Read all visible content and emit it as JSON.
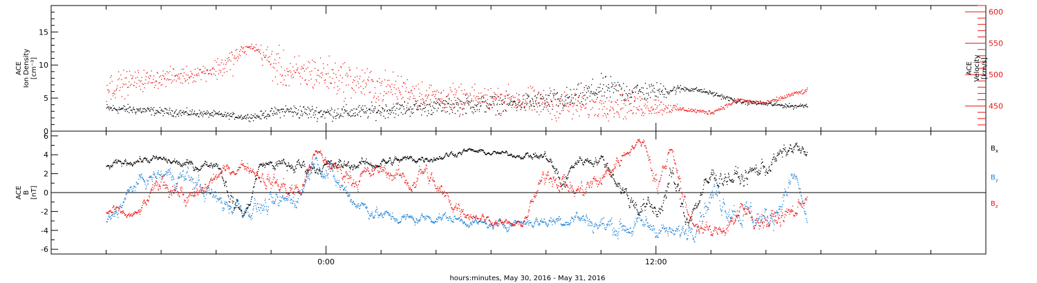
{
  "chart_data": [
    {
      "type": "scatter",
      "panel": "top",
      "ylabel_left": [
        "ACE",
        "Ion Density",
        "[cm⁻³]"
      ],
      "ylabel_right": [
        "ACE",
        "Velocity",
        "[km/s]"
      ],
      "left_axis": {
        "ylim": [
          0,
          19
        ],
        "ticks": [
          0,
          5,
          10,
          15
        ]
      },
      "right_axis": {
        "ylim": [
          410,
          610
        ],
        "ticks": [
          450,
          500,
          550,
          600
        ],
        "color": "#ee1111"
      },
      "series": [
        {
          "color": "#000000",
          "axis": "left",
          "anchors_x": [
            -8,
            -7,
            -6,
            -5,
            -4,
            -3,
            -2.5,
            -2,
            -1.5,
            -1,
            0,
            1,
            2,
            3,
            4,
            5,
            6,
            7,
            8,
            9,
            10,
            11,
            12,
            13,
            13.5,
            14,
            15,
            16,
            17,
            17.5
          ],
          "anchors_y": [
            3.5,
            3.3,
            3.0,
            2.8,
            2.6,
            2.2,
            2.3,
            2.8,
            3.2,
            3.0,
            2.8,
            2.9,
            3.2,
            3.5,
            3.8,
            4.0,
            4.2,
            4.3,
            4.5,
            5.0,
            6.5,
            6.0,
            6.0,
            6.5,
            6.3,
            5.8,
            4.5,
            4.2,
            3.8,
            4.0
          ],
          "noise": [
            0.6,
            0.6,
            0.5,
            0.5,
            0.4,
            0.4,
            0.5,
            0.6,
            0.8,
            0.9,
            0.9,
            0.9,
            1.0,
            1.0,
            1.1,
            1.2,
            1.2,
            1.3,
            1.4,
            1.5,
            1.6,
            1.5,
            1.2,
            0.4,
            0.3,
            0.3,
            0.3,
            0.3,
            0.3,
            0.3
          ]
        },
        {
          "color": "#ee1111",
          "axis": "right",
          "anchors_x": [
            -8,
            -7,
            -6,
            -5,
            -4.5,
            -4,
            -3.5,
            -3,
            -2.7,
            -2.5,
            -2,
            -1.5,
            -1,
            -0.5,
            0,
            1,
            2,
            3,
            4,
            5,
            6,
            7,
            8,
            9,
            10,
            11,
            12,
            13,
            14,
            15,
            16,
            17,
            17.5
          ],
          "anchors_y": [
            480,
            490,
            495,
            500,
            505,
            510,
            520,
            540,
            545,
            540,
            520,
            505,
            500,
            505,
            500,
            490,
            480,
            475,
            465,
            460,
            462,
            460,
            455,
            450,
            455,
            450,
            450,
            445,
            440,
            460,
            455,
            470,
            475
          ],
          "noise": [
            20,
            15,
            12,
            12,
            10,
            15,
            20,
            8,
            4,
            8,
            25,
            25,
            25,
            25,
            25,
            24,
            22,
            20,
            18,
            18,
            18,
            18,
            20,
            20,
            20,
            18,
            12,
            3,
            3,
            3,
            3,
            3,
            3
          ]
        }
      ]
    },
    {
      "type": "scatter",
      "panel": "bottom",
      "ylabel": [
        "ACE",
        "B",
        "[nT]"
      ],
      "ylim": [
        -6.5,
        6.5
      ],
      "yticks": [
        -6,
        -4,
        -2,
        0,
        2,
        4,
        6
      ],
      "zero_line": true,
      "series": [
        {
          "label": "B",
          "sub": "x",
          "color": "#000000",
          "anchors_x": [
            -8,
            -7,
            -6,
            -5,
            -4,
            -3.5,
            -3,
            -2.5,
            -2,
            -1.5,
            -1,
            0,
            1,
            2,
            3,
            4,
            5,
            6,
            7,
            8,
            8.5,
            9,
            10,
            11,
            12,
            12.5,
            13,
            14,
            15,
            16,
            17,
            17.5
          ],
          "anchors_y": [
            2.8,
            3.5,
            3.5,
            2.8,
            3.2,
            -1,
            -2.5,
            3.2,
            3.0,
            2.8,
            2.8,
            2.8,
            3.0,
            3.2,
            3.6,
            3.8,
            4.5,
            4.2,
            4.0,
            3.8,
            0.5,
            3.5,
            3.5,
            -1,
            -2,
            2,
            -3.0,
            2.0,
            1.5,
            3.0,
            5.0,
            3.5
          ],
          "noise": [
            0.6,
            0.6,
            0.6,
            0.8,
            0.6,
            1.5,
            1.0,
            0.6,
            0.8,
            1.2,
            1.2,
            1.0,
            0.8,
            0.8,
            0.6,
            0.6,
            0.4,
            0.4,
            0.4,
            0.8,
            1.5,
            0.8,
            0.8,
            1.5,
            1.5,
            2.0,
            1.5,
            1.5,
            1.5,
            1.5,
            1.0,
            1.0
          ]
        },
        {
          "label": "B",
          "sub": "y",
          "color": "#1a7fd4",
          "anchors_x": [
            -8,
            -7,
            -6,
            -5,
            -4,
            -3,
            -2,
            -1,
            -0.5,
            0,
            1,
            2,
            3,
            4,
            5,
            6,
            7,
            8,
            9,
            10,
            11,
            12,
            12.5,
            13,
            14,
            15,
            16,
            17,
            17.5
          ],
          "anchors_y": [
            -3,
            1,
            2,
            1.5,
            -1,
            -1.5,
            -1.5,
            0,
            4,
            2,
            -1,
            -2.5,
            -2.8,
            -2.5,
            -3.0,
            -3.5,
            -3.0,
            -3.0,
            -2.5,
            -3.5,
            -3.5,
            -3.5,
            -4.5,
            -4.0,
            0,
            -2,
            -3,
            2,
            -4.5
          ],
          "noise": [
            1.0,
            1.0,
            1.2,
            1.5,
            1.5,
            1.5,
            1.5,
            1.5,
            1.0,
            1.5,
            1.2,
            1.0,
            0.8,
            0.8,
            0.6,
            0.6,
            0.8,
            1.0,
            1.2,
            1.5,
            1.5,
            1.5,
            1.0,
            1.5,
            2.0,
            2.0,
            2.0,
            1.5,
            1.0
          ]
        },
        {
          "label": "B",
          "sub": "z",
          "color": "#ee1111",
          "anchors_x": [
            -8,
            -7,
            -6,
            -5,
            -4,
            -3,
            -2,
            -1,
            -0.5,
            0,
            1,
            2,
            3,
            3.5,
            4,
            5,
            6,
            7,
            8,
            9,
            10,
            11,
            11.5,
            12,
            12.5,
            13,
            14,
            15,
            16,
            17,
            17.5
          ],
          "anchors_y": [
            -2,
            -2.5,
            1.5,
            -1,
            2,
            3,
            1,
            0,
            4.5,
            3,
            1.5,
            2.5,
            1.0,
            2.5,
            0,
            -2,
            -3,
            -3.5,
            2.5,
            0,
            1.5,
            5.0,
            5.5,
            0.5,
            5.5,
            -2.5,
            -4.5,
            -2,
            -3,
            -2,
            0.5
          ],
          "noise": [
            1.0,
            0.6,
            1.5,
            1.5,
            1.0,
            0.8,
            1.5,
            1.5,
            0.8,
            1.0,
            1.5,
            1.0,
            1.5,
            1.5,
            1.5,
            1.0,
            0.6,
            0.6,
            1.5,
            1.5,
            1.5,
            0.8,
            0.6,
            2.0,
            0.8,
            1.5,
            1.0,
            1.5,
            1.5,
            1.5,
            1.0
          ]
        }
      ]
    }
  ],
  "x_axis": {
    "range_hours": [
      -10,
      24
    ],
    "labels": [
      {
        "hour": 0,
        "text": "0:00"
      },
      {
        "hour": 12,
        "text": "12:00"
      }
    ],
    "minor_step_hours": 2,
    "title": "hours:minutes, May 30, 2016 - May 31, 2016"
  }
}
